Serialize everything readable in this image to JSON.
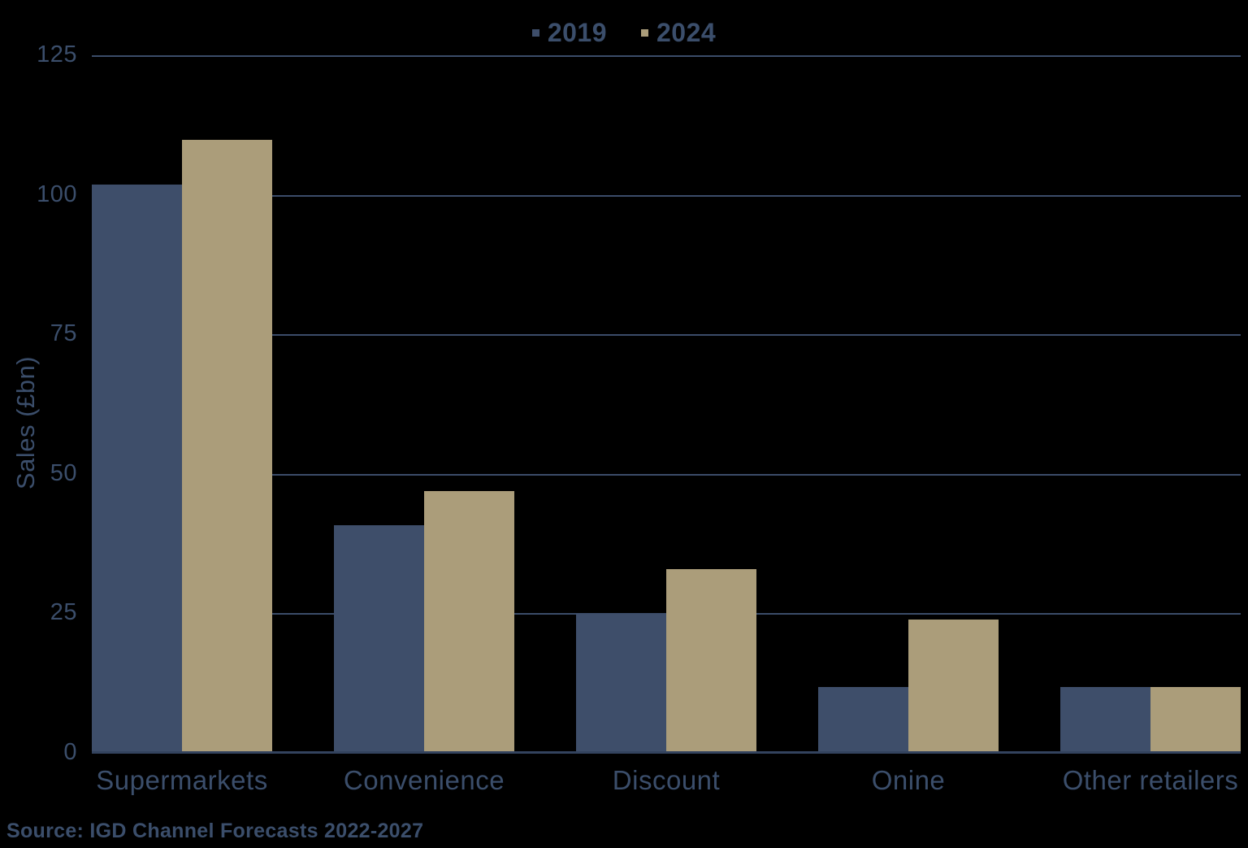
{
  "chart_data": {
    "type": "bar",
    "categories": [
      "Supermarkets",
      "Convenience",
      "Discount",
      "Onine",
      "Other retailers"
    ],
    "series": [
      {
        "name": "2019",
        "color": "#3E4E6A",
        "values": [
          102,
          41,
          25,
          12,
          12
        ]
      },
      {
        "name": "2024",
        "color": "#AB9D7A",
        "values": [
          110,
          47,
          33,
          24,
          12
        ]
      }
    ],
    "title": "",
    "xlabel": "",
    "ylabel": "Sales (£bn)",
    "ylim": [
      0,
      125
    ],
    "yticks": [
      0,
      25,
      50,
      75,
      100,
      125
    ],
    "grid": "horizontal",
    "legend_position": "top-center",
    "source": "Source: IGD Channel Forecasts 2022-2027"
  },
  "colors": {
    "background": "#000000",
    "text": "#3B4E6B",
    "gridline": "#3B4C69",
    "baseline": "#33435E",
    "series_2019": "#3E4E6A",
    "series_2024": "#AB9D7A"
  }
}
